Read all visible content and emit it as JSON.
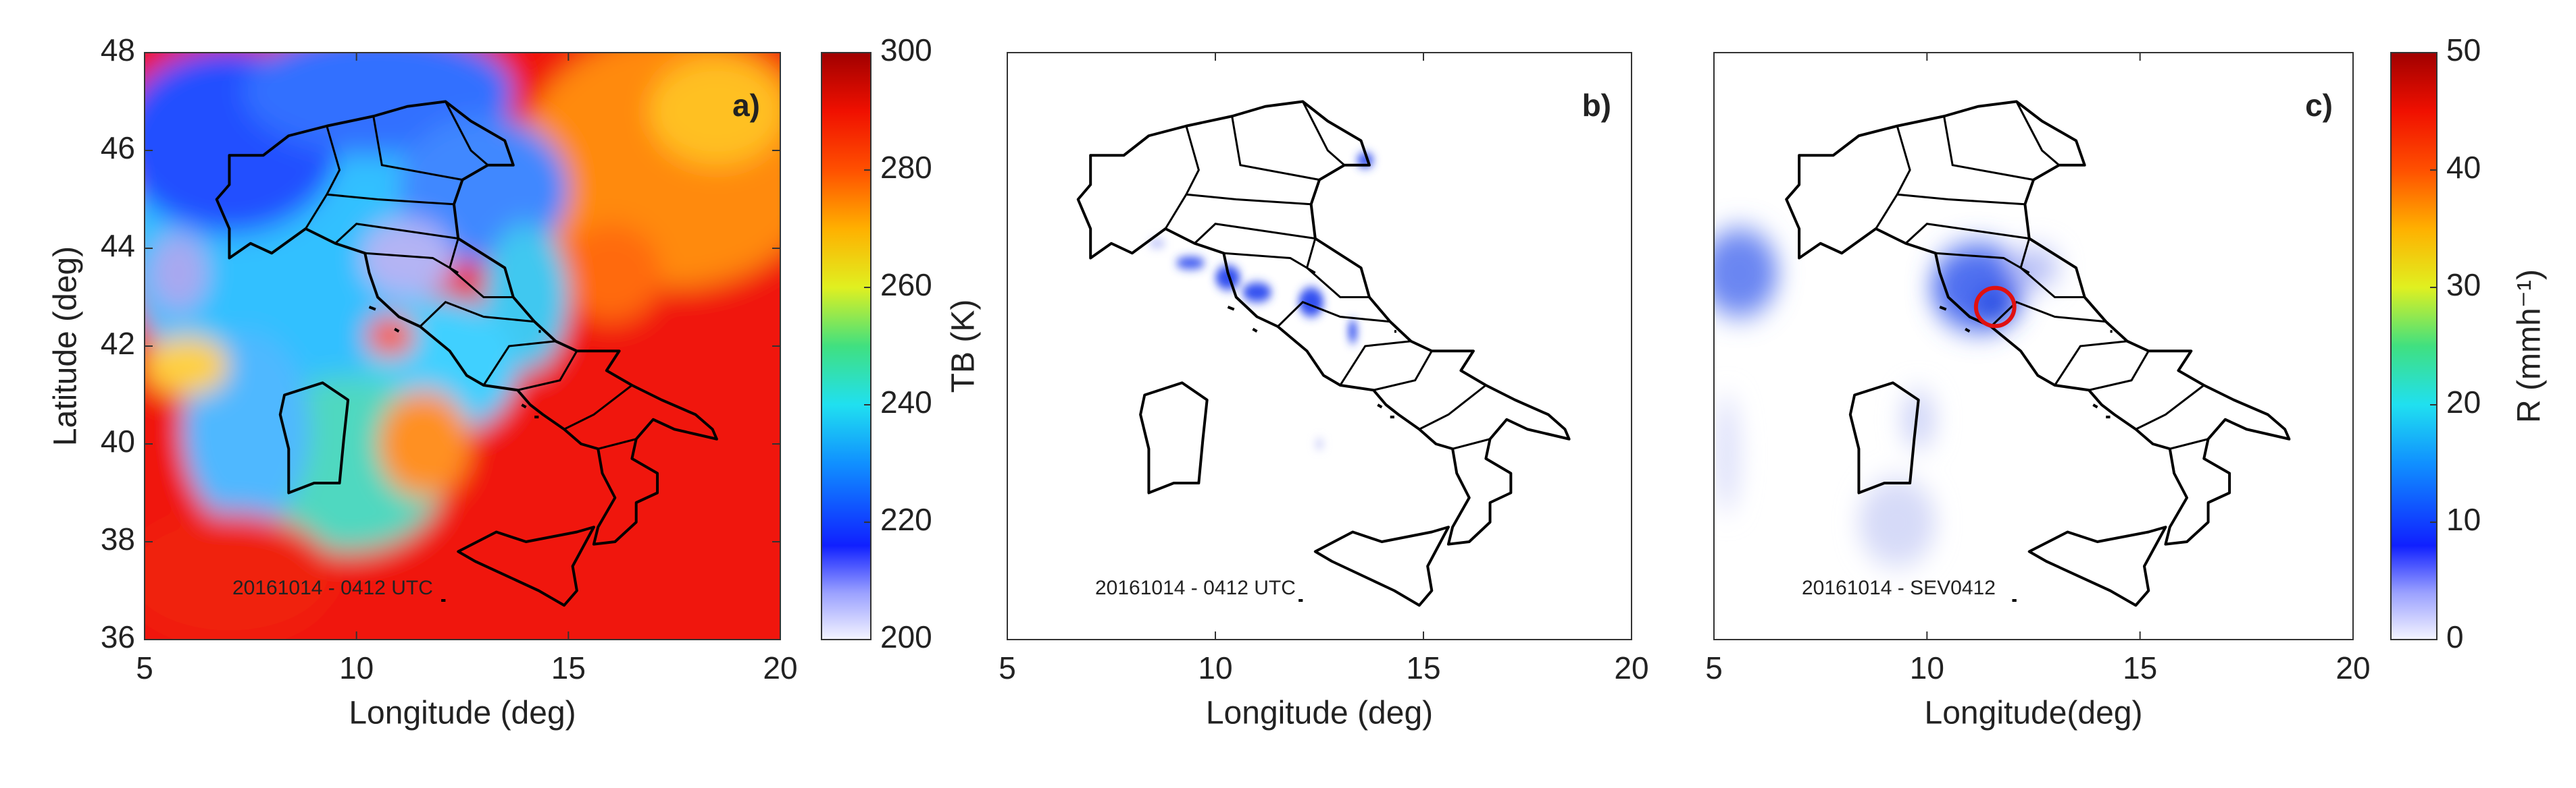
{
  "panels": [
    {
      "label": "a)",
      "annotation": "20161014 - 0412 UTC",
      "xlabel": "Longitude (deg)",
      "ylabel": "Latitude (deg)",
      "xlim": [
        5,
        20
      ],
      "ylim": [
        36,
        48
      ],
      "xticks": [
        5,
        10,
        15,
        20
      ],
      "yticks": [
        36,
        38,
        40,
        42,
        44,
        46,
        48
      ]
    },
    {
      "label": "b)",
      "annotation": "20161014 - 0412 UTC",
      "xlabel": "Longitude (deg)",
      "xlim": [
        5,
        20
      ],
      "ylim": [
        36,
        48
      ],
      "xticks": [
        5,
        10,
        15,
        20
      ]
    },
    {
      "label": "c)",
      "annotation": "20161014 - SEV0412",
      "xlabel": "Longitude(deg)",
      "xlim": [
        5,
        20
      ],
      "ylim": [
        36,
        48
      ],
      "xticks": [
        5,
        10,
        15,
        20
      ]
    }
  ],
  "colorbars": [
    {
      "label": "TB (K)",
      "lim": [
        200,
        300
      ],
      "ticks": [
        200,
        220,
        240,
        260,
        280,
        300
      ]
    },
    {
      "label": "R (mmh⁻¹)",
      "lim": [
        0,
        50
      ],
      "ticks": [
        0,
        10,
        20,
        30,
        40,
        50
      ]
    }
  ]
}
